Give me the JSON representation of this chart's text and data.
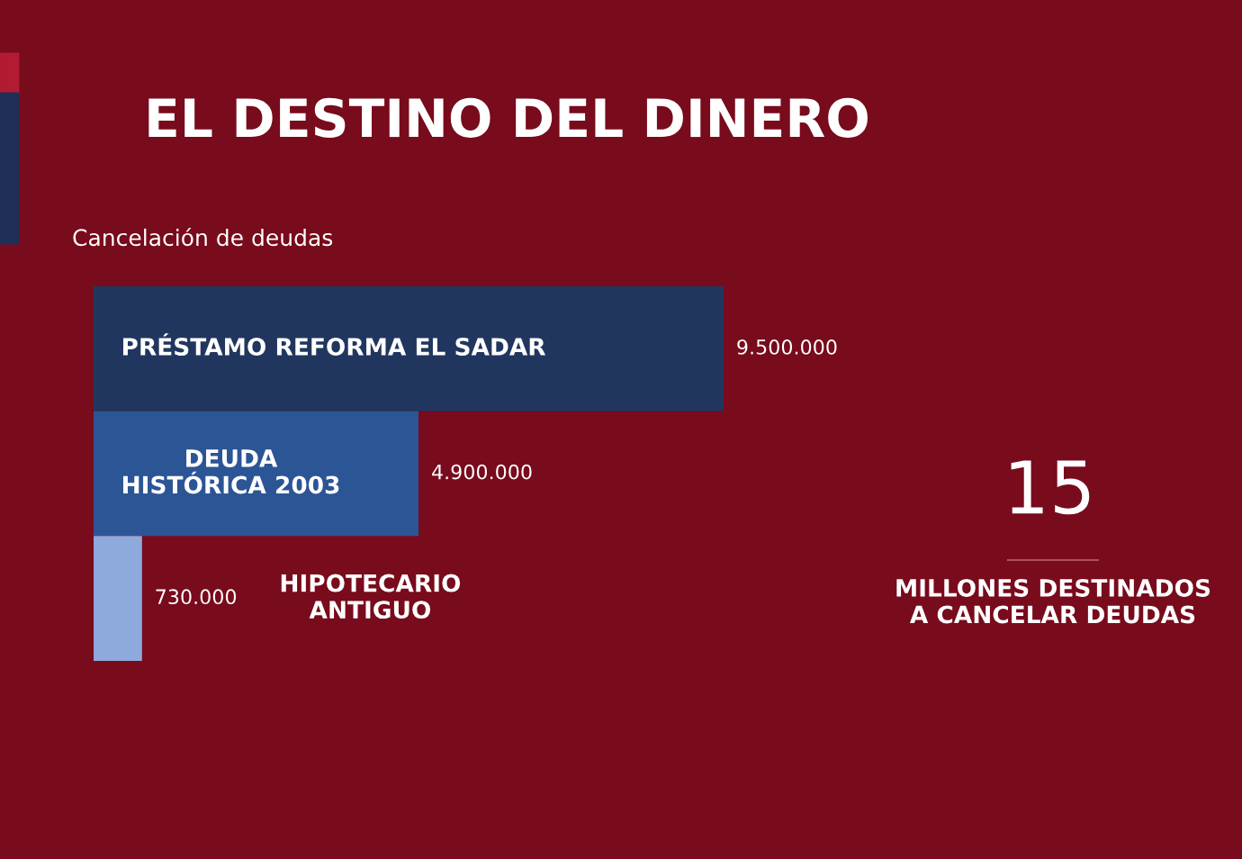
{
  "chart_data": {
    "type": "bar",
    "orientation": "horizontal",
    "title": "EL DESTINO DEL DINERO",
    "subtitle": "Cancelación de deudas",
    "categories": [
      "PRÉSTAMO REFORMA EL SADAR",
      "DEUDA\nHISTÓRICA 2003",
      "HIPOTECARIO\nANTIGUO"
    ],
    "values": [
      9500000,
      4900000,
      730000
    ],
    "colors": [
      "#21365f",
      "#2c5596",
      "#8ea9db"
    ],
    "value_labels": [
      "9.500.000",
      "4.900.000",
      "730.000"
    ],
    "tick_labels": false,
    "annotations": [
      "15",
      "MILLONES DESTINADOS\nA CANCELAR DEUDAS"
    ]
  }
}
